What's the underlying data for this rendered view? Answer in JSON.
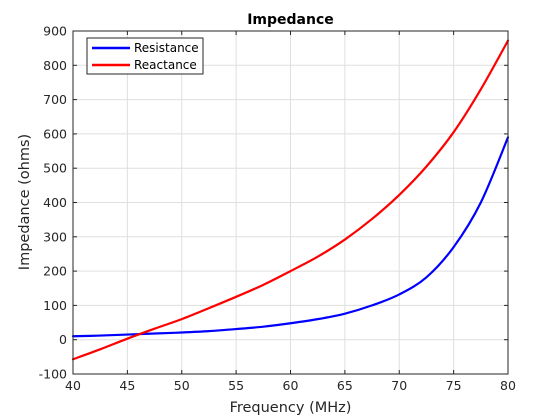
{
  "chart_data": {
    "type": "line",
    "title": "Impedance",
    "xlabel": "Frequency (MHz)",
    "ylabel": "Impedance (ohms)",
    "xlim": [
      40,
      80
    ],
    "ylim": [
      -100,
      900
    ],
    "xticks": [
      40,
      45,
      50,
      55,
      60,
      65,
      70,
      75,
      80
    ],
    "yticks": [
      -100,
      0,
      100,
      200,
      300,
      400,
      500,
      600,
      700,
      800,
      900
    ],
    "grid": true,
    "legend_position": "top-left",
    "x": [
      40,
      42.5,
      45,
      47.5,
      50,
      52.5,
      55,
      57.5,
      60,
      62.5,
      65,
      67.5,
      70,
      72.5,
      75,
      77.5,
      80
    ],
    "series": [
      {
        "name": "Resistance",
        "color": "#0000ff",
        "values": [
          10,
          12,
          15,
          18,
          21,
          25,
          31,
          38,
          48,
          60,
          76,
          100,
          132,
          182,
          270,
          400,
          590
        ]
      },
      {
        "name": "Reactance",
        "color": "#ff0000",
        "values": [
          -57,
          -28,
          3,
          32,
          60,
          92,
          125,
          160,
          200,
          242,
          292,
          352,
          422,
          505,
          605,
          730,
          872
        ]
      }
    ]
  }
}
